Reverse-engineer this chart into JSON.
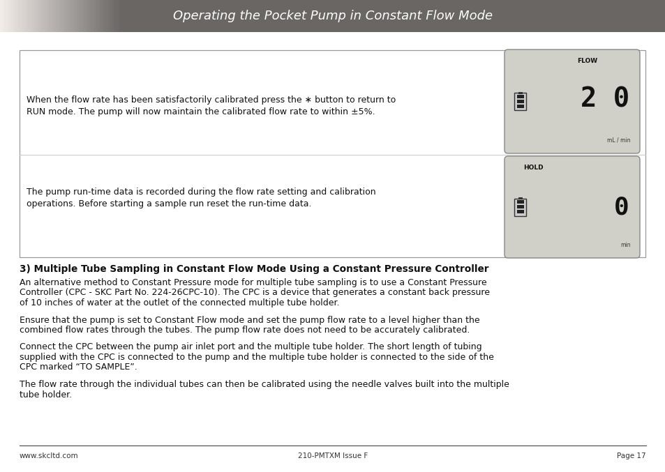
{
  "title": "Operating the Pocket Pump in Constant Flow Mode",
  "page_bg": "#ffffff",
  "footer_left": "www.skcltd.com",
  "footer_center": "210-PMTXM Issue F",
  "footer_right": "Page 17",
  "box1_text_line1": "When the flow rate has been satisfactorily calibrated press the ∗ button to return to",
  "box1_text_line2": "RUN mode. The pump will now maintain the calibrated flow rate to within ±5%.",
  "box2_text_line1": "The pump run-time data is recorded during the flow rate setting and calibration",
  "box2_text_line2": "operations. Before starting a sample run reset the run-time data.",
  "display1_label": "FLOW",
  "display1_value": "2 0",
  "display1_unit": "mL / min",
  "display2_label": "HOLD",
  "display2_value": "0",
  "display2_unit": "min",
  "heading3": "3) Multiple Tube Sampling in Constant Flow Mode Using a Constant Pressure Controller",
  "para1_line1": "An alternative method to Constant Pressure mode for multiple tube sampling is to use a Constant Pressure",
  "para1_line2": "Controller (CPC - SKC Part No. 224-26CPC-10). The CPC is a device that generates a constant back pressure",
  "para1_line3": "of 10 inches of water at the outlet of the connected multiple tube holder.",
  "para2_line1": "Ensure that the pump is set to Constant Flow mode and set the pump flow rate to a level higher than the",
  "para2_line2": "combined flow rates through the tubes. The pump flow rate does not need to be accurately calibrated.",
  "para3_line1": "Connect the CPC between the pump air inlet port and the multiple tube holder. The short length of tubing",
  "para3_line2": "supplied with the CPC is connected to the pump and the multiple tube holder is connected to the side of the",
  "para3_line3": "CPC marked “TO SAMPLE”.",
  "para4_line1": "The flow rate through the individual tubes can then be calibrated using the needle valves built into the multiple",
  "para4_line2": "tube holder.",
  "header_gray": "#686460",
  "lcd_bg": "#d0d0c8",
  "battery_dark": "#222222",
  "battery_light": "#aaaaaa"
}
